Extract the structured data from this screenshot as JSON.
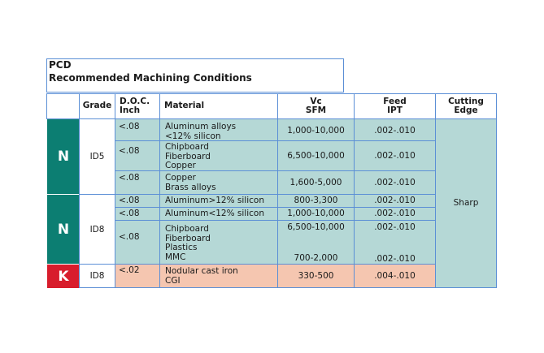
{
  "title": {
    "line1": "PCD",
    "line2": "Recommended Machining Conditions"
  },
  "headers": {
    "grade": "Grade",
    "doc": [
      "D.O.C.",
      "Inch"
    ],
    "material": "Material",
    "vc": [
      "Vc",
      "SFM"
    ],
    "feed": [
      "Feed",
      "IPT"
    ],
    "edge": [
      "Cutting",
      "Edge"
    ]
  },
  "groups": [
    {
      "badge": "N",
      "grade": "ID5"
    },
    {
      "badge": "N",
      "grade": "ID8"
    },
    {
      "badge": "K",
      "grade": "ID8"
    }
  ],
  "rows": [
    {
      "doc": "<.08",
      "material": [
        "Aluminum alloys",
        "<12% silicon"
      ],
      "vc": "1,000-10,000",
      "feed": ".002-.010"
    },
    {
      "doc": "<.08",
      "material": [
        "Chipboard",
        "Fiberboard",
        "Copper"
      ],
      "vc": "6,500-10,000",
      "feed": ".002-.010"
    },
    {
      "doc": "<.08",
      "material": [
        "Copper",
        "Brass alloys"
      ],
      "vc": "1,600-5,000",
      "feed": ".002-.010"
    },
    {
      "doc": "<.08",
      "material": [
        "Aluminum>12% silicon"
      ],
      "vc": "800-3,300",
      "feed": ".002-.010"
    },
    {
      "doc": "<.08",
      "material": [
        "Aluminum<12% silicon"
      ],
      "vc": "1,000-10,000",
      "feed": ".002-.010"
    },
    {
      "doc": "<.08",
      "material": [
        "Chipboard",
        "Fiberboard",
        "Plastics",
        "MMC"
      ],
      "vc": [
        "6,500-10,000",
        "700-2,000"
      ],
      "feed": [
        ".002-.010",
        ".002-.010"
      ]
    },
    {
      "doc": "<.02",
      "material": [
        "Nodular cast iron",
        "CGI"
      ],
      "vc": "330-500",
      "feed": ".004-.010"
    }
  ],
  "cutting_edge": "Sharp",
  "colors": {
    "teal_badge": "#0c7e72",
    "red_badge": "#d81d2c",
    "teal_fill": "#b5d8d6",
    "salmon_fill": "#f5c6b0",
    "border": "#5b8fd6"
  }
}
